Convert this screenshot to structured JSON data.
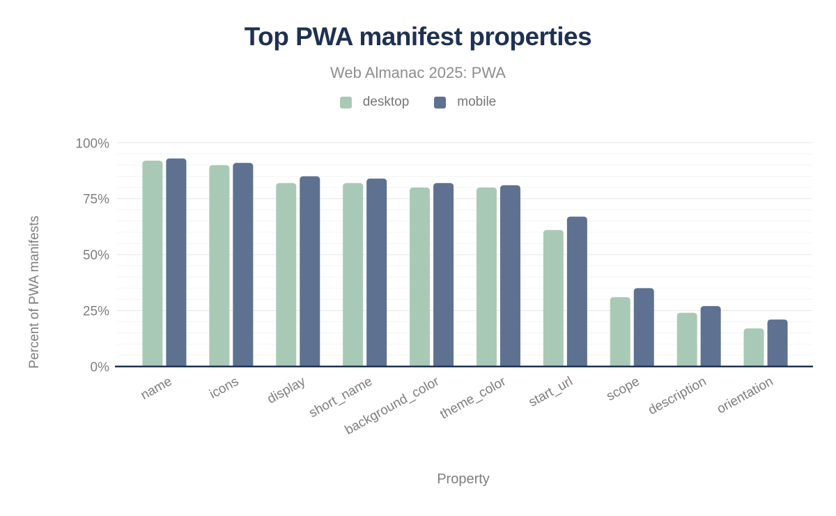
{
  "chart": {
    "title": "Top PWA manifest properties",
    "subtitle": "Web Almanac 2025: PWA"
  },
  "chart_data": {
    "type": "bar",
    "title": "Top PWA manifest properties",
    "subtitle": "Web Almanac 2025: PWA",
    "categories": [
      "name",
      "icons",
      "display",
      "short_name",
      "background_color",
      "theme_color",
      "start_url",
      "scope",
      "description",
      "orientation"
    ],
    "series": [
      {
        "name": "desktop",
        "color": "#a9c9b7",
        "values": [
          92,
          90,
          82,
          82,
          80,
          80,
          61,
          31,
          24,
          17
        ]
      },
      {
        "name": "mobile",
        "color": "#5e7190",
        "values": [
          93,
          91,
          85,
          84,
          82,
          81,
          67,
          35,
          27,
          21
        ]
      }
    ],
    "xlabel": "Property",
    "ylabel": "Percent of PWA manifests",
    "ylim": [
      0,
      100
    ],
    "y_ticks": [
      "0%",
      "25%",
      "50%",
      "75%",
      "100%"
    ],
    "values_unit": "%",
    "grid": "minor every 5%, major every 25%",
    "legend_position": "top"
  },
  "colors": {
    "title_navy": "#1e3151",
    "axis_line": "#1e3151",
    "axis_text": "#7e7e7e",
    "subtitle_gray": "#8d8d8d",
    "legend_text": "#757575",
    "gridline_major": "#e6e6e6",
    "gridline_minor": "#f4f4f4",
    "desktop": "#a9c9b7",
    "mobile": "#5e7190"
  }
}
